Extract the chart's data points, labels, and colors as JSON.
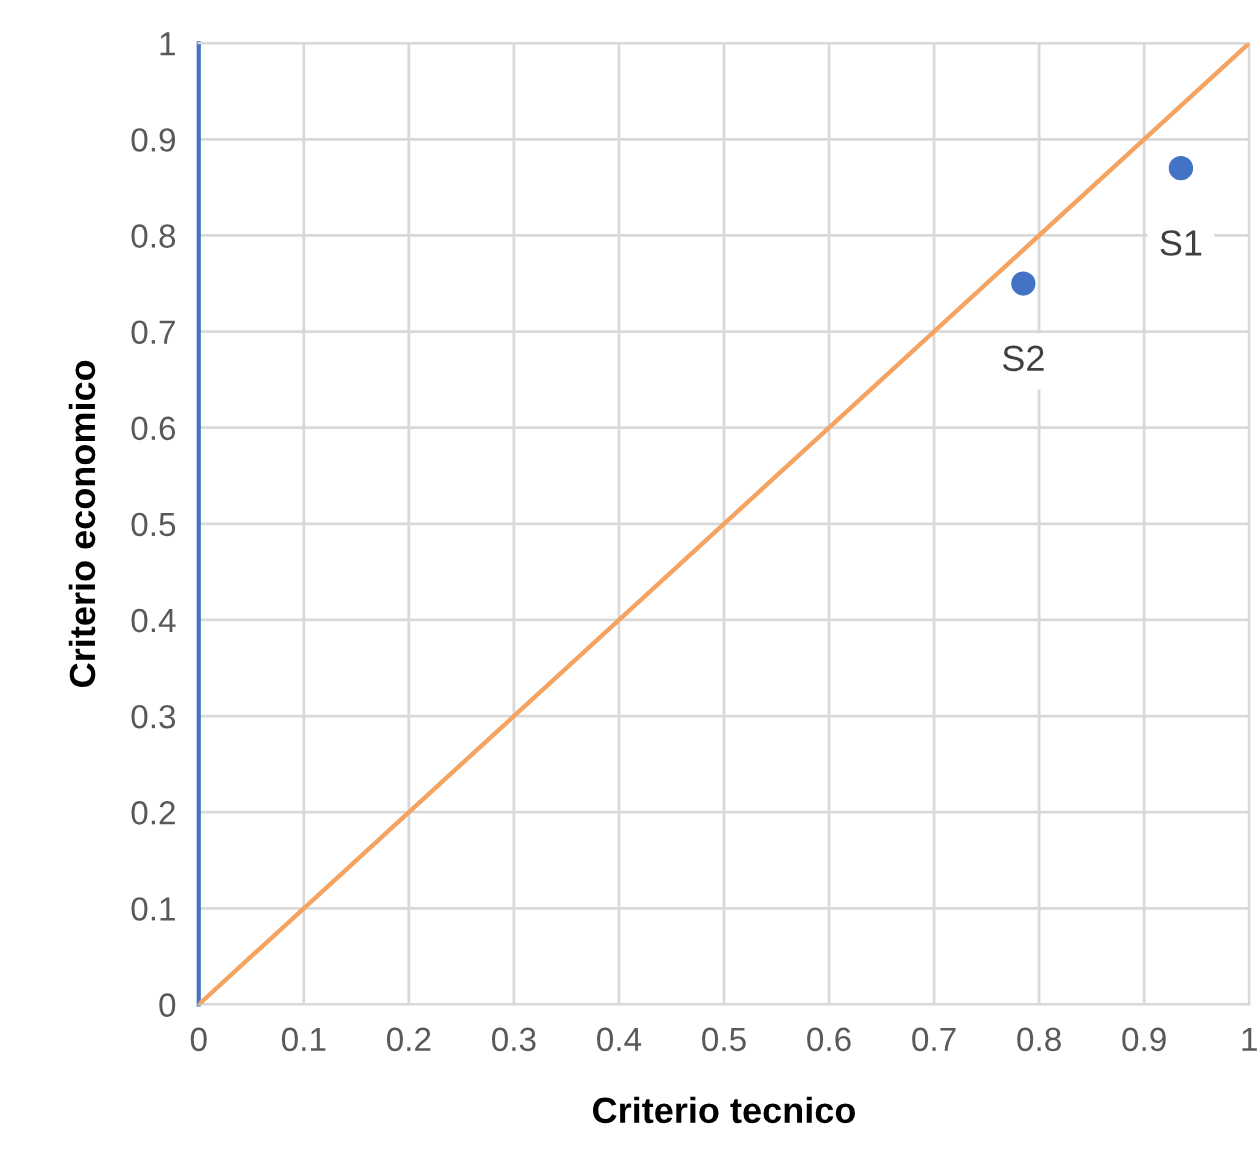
{
  "chart_data": {
    "type": "scatter",
    "xlabel": "Criterio tecnico",
    "ylabel": "Criterio economico",
    "series": [
      {
        "color": "#4472c4",
        "x": [
          0.935,
          0.785
        ],
        "values": [
          0.87,
          0.75
        ],
        "marker": "circle"
      },
      {
        "type": "line",
        "color": "#f4a460",
        "x": [
          0,
          1
        ],
        "values": [
          0,
          1
        ],
        "marker": "none",
        "line_style": "solid"
      }
    ],
    "annotations": [
      {
        "text": "S1",
        "x": 0.935,
        "y": 0.87
      },
      {
        "text": "S2",
        "x": 0.785,
        "y": 0.75
      }
    ],
    "xlim": [
      0,
      1
    ],
    "ylim": [
      0,
      1
    ],
    "xticks": [
      0,
      0.1,
      0.2,
      0.3,
      0.4,
      0.5,
      0.6,
      0.7,
      0.8,
      0.9,
      1
    ],
    "yticks": [
      0,
      0.1,
      0.2,
      0.3,
      0.4,
      0.5,
      0.6,
      0.7,
      0.8,
      0.9,
      1
    ],
    "grid": true,
    "legend": false
  }
}
